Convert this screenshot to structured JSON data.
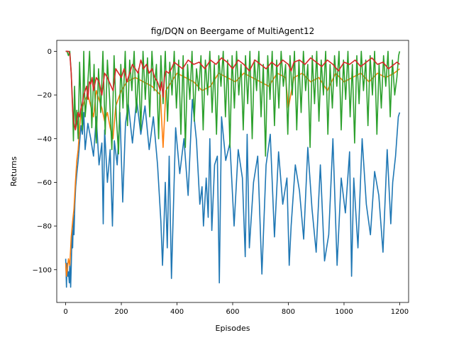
{
  "chart_data": {
    "type": "line",
    "title": "fig/DQN on Beergame of MultiAgent12",
    "xlabel": "Episodes",
    "ylabel": "Returns",
    "xlim": [
      -32,
      1232
    ],
    "ylim": [
      -115,
      5
    ],
    "xticks": [
      0,
      200,
      400,
      600,
      800,
      1000,
      1200
    ],
    "yticks": [
      0,
      -20,
      -40,
      -60,
      -80,
      -100
    ],
    "grid": false,
    "legend": "none",
    "series": [
      {
        "color": "#1f77b4",
        "x": [
          0,
          3,
          5,
          8,
          10,
          13,
          15,
          18,
          20,
          23,
          25,
          28,
          30,
          33,
          36,
          40,
          45,
          50,
          55,
          60,
          65,
          70,
          80,
          90,
          100,
          110,
          120,
          130,
          135,
          140,
          150,
          160,
          168,
          175,
          185,
          195,
          205,
          215,
          225,
          240,
          255,
          270,
          285,
          300,
          315,
          330,
          342,
          348,
          352,
          358,
          365,
          372,
          380,
          395,
          410,
          425,
          440,
          455,
          470,
          482,
          490,
          495,
          505,
          512,
          518,
          525,
          535,
          545,
          552,
          560,
          575,
          590,
          605,
          620,
          635,
          645,
          652,
          660,
          675,
          690,
          705,
          720,
          735,
          750,
          765,
          780,
          795,
          803,
          810,
          825,
          840,
          855,
          870,
          885,
          900,
          915,
          930,
          945,
          960,
          975,
          990,
          1005,
          1020,
          1027,
          1035,
          1050,
          1065,
          1080,
          1095,
          1110,
          1125,
          1140,
          1155,
          1168,
          1175,
          1185,
          1195,
          1200
        ],
        "y": [
          -95,
          -108,
          -97,
          -103,
          -101,
          -106,
          -96,
          -108,
          -99,
          -82,
          -90,
          -75,
          -84,
          -70,
          -62,
          -56,
          -50,
          -42,
          -34,
          -38,
          -28,
          -45,
          -33,
          -40,
          -48,
          -30,
          -52,
          -42,
          -79,
          -36,
          -60,
          -45,
          -80,
          -41,
          -52,
          -28,
          -69,
          -33,
          -24,
          -42,
          -22,
          -38,
          -25,
          -45,
          -30,
          -52,
          -78,
          -98,
          -84,
          -60,
          -90,
          -48,
          -104,
          -35,
          -56,
          -40,
          -66,
          -22,
          -41,
          -70,
          -62,
          -80,
          -58,
          -76,
          -40,
          -82,
          -52,
          -48,
          -106,
          -30,
          -50,
          -42,
          -80,
          -45,
          -58,
          -94,
          -38,
          -90,
          -60,
          -48,
          -102,
          -52,
          -38,
          -85,
          -46,
          -70,
          -58,
          -98,
          -80,
          -52,
          -64,
          -86,
          -44,
          -72,
          -92,
          -52,
          -96,
          -84,
          -40,
          -98,
          -58,
          -74,
          -46,
          -103,
          -58,
          -90,
          -40,
          -70,
          -84,
          -55,
          -66,
          -92,
          -45,
          -79,
          -60,
          -48,
          -30,
          -28
        ]
      },
      {
        "color": "#ff7f0e",
        "x": [
          0,
          3,
          6,
          10,
          15,
          20,
          25,
          30,
          35,
          40,
          45,
          50,
          55,
          60,
          70,
          80,
          90,
          100,
          110,
          120,
          130,
          140,
          150,
          160,
          170,
          180,
          200,
          220,
          250,
          280,
          310,
          340,
          350,
          360,
          380,
          400,
          430,
          460,
          490,
          520,
          550,
          580,
          610,
          640,
          670,
          700,
          730,
          760,
          790,
          800,
          820,
          850,
          880,
          910,
          940,
          970,
          1000,
          1030,
          1060,
          1090,
          1120,
          1150,
          1180,
          1200
        ],
        "y": [
          -97,
          -103,
          -100,
          -95,
          -98,
          -85,
          -78,
          -72,
          -60,
          -50,
          -45,
          -35,
          -28,
          -26,
          -22,
          -20,
          -25,
          -30,
          -18,
          -22,
          -26,
          -32,
          -28,
          -35,
          -40,
          -25,
          -18,
          -14,
          -12,
          -14,
          -16,
          -20,
          -44,
          -18,
          -14,
          -10,
          -12,
          -14,
          -18,
          -16,
          -10,
          -12,
          -14,
          -10,
          -12,
          -14,
          -16,
          -10,
          -12,
          -26,
          -12,
          -10,
          -14,
          -12,
          -18,
          -10,
          -14,
          -12,
          -10,
          -14,
          -10,
          -12,
          -10,
          -8
        ]
      },
      {
        "color": "#2ca02c",
        "x": [
          0,
          5,
          10,
          15,
          20,
          25,
          28,
          32,
          36,
          40,
          45,
          50,
          55,
          60,
          65,
          70,
          78,
          86,
          94,
          102,
          110,
          118,
          126,
          134,
          142,
          150,
          158,
          166,
          174,
          182,
          190,
          198,
          206,
          214,
          222,
          230,
          238,
          246,
          254,
          262,
          270,
          278,
          286,
          294,
          302,
          310,
          318,
          326,
          334,
          342,
          350,
          358,
          366,
          374,
          382,
          390,
          398,
          406,
          414,
          422,
          430,
          438,
          446,
          454,
          462,
          470,
          478,
          486,
          494,
          502,
          510,
          518,
          526,
          534,
          542,
          550,
          558,
          566,
          574,
          582,
          590,
          598,
          606,
          614,
          622,
          630,
          638,
          646,
          654,
          662,
          670,
          678,
          686,
          694,
          702,
          710,
          718,
          726,
          734,
          742,
          750,
          758,
          766,
          774,
          782,
          790,
          798,
          806,
          814,
          822,
          830,
          838,
          846,
          854,
          862,
          870,
          878,
          886,
          894,
          902,
          910,
          918,
          926,
          934,
          942,
          950,
          958,
          966,
          974,
          982,
          990,
          998,
          1006,
          1014,
          1022,
          1030,
          1038,
          1046,
          1054,
          1062,
          1070,
          1078,
          1086,
          1094,
          1102,
          1110,
          1118,
          1126,
          1134,
          1142,
          1150,
          1158,
          1166,
          1174,
          1182,
          1190,
          1196,
          1200
        ],
        "y": [
          0,
          0,
          -2,
          0,
          -10,
          -25,
          -41,
          -16,
          -35,
          -27,
          -40,
          -5,
          -24,
          -36,
          0,
          -30,
          -18,
          0,
          -35,
          -6,
          -42,
          -8,
          -28,
          0,
          -38,
          -4,
          -22,
          -45,
          -2,
          -30,
          -47,
          -6,
          -26,
          0,
          -34,
          -4,
          -18,
          0,
          -28,
          -8,
          -36,
          0,
          -22,
          -3,
          -30,
          0,
          -18,
          -6,
          -40,
          -2,
          -24,
          0,
          -32,
          -5,
          -20,
          0,
          -26,
          -4,
          -38,
          -2,
          -44,
          -6,
          -22,
          0,
          -32,
          -8,
          -18,
          -2,
          -36,
          -4,
          -20,
          0,
          -28,
          -6,
          -38,
          -2,
          -16,
          0,
          -30,
          -4,
          -44,
          -2,
          -26,
          0,
          -20,
          -6,
          -36,
          -2,
          -24,
          0,
          -40,
          -4,
          -18,
          0,
          -30,
          -6,
          -48,
          -2,
          -22,
          0,
          -34,
          -4,
          -26,
          0,
          -16,
          -6,
          -38,
          -2,
          -20,
          0,
          -36,
          -4,
          -28,
          0,
          -18,
          -6,
          -44,
          -2,
          -24,
          0,
          -32,
          -4,
          -20,
          0,
          -38,
          -6,
          -26,
          -2,
          -16,
          0,
          -36,
          -4,
          -22,
          0,
          -30,
          -6,
          -42,
          -2,
          -24,
          0,
          -18,
          -4,
          -34,
          -2,
          -20,
          0,
          -38,
          -6,
          -26,
          -2,
          -16,
          0,
          -30,
          -4,
          -20,
          -12,
          -2,
          0
        ]
      },
      {
        "color": "#d62728",
        "x": [
          0,
          5,
          10,
          15,
          20,
          25,
          30,
          35,
          40,
          45,
          50,
          55,
          60,
          65,
          70,
          75,
          80,
          85,
          90,
          95,
          100,
          110,
          120,
          130,
          140,
          150,
          160,
          170,
          180,
          190,
          200,
          210,
          220,
          230,
          240,
          250,
          260,
          270,
          280,
          290,
          300,
          310,
          320,
          330,
          340,
          345,
          350,
          355,
          360,
          370,
          380,
          390,
          400,
          420,
          440,
          460,
          480,
          500,
          520,
          540,
          560,
          580,
          600,
          620,
          640,
          660,
          680,
          700,
          720,
          740,
          760,
          780,
          800,
          810,
          820,
          840,
          860,
          880,
          900,
          920,
          940,
          960,
          980,
          1000,
          1020,
          1040,
          1060,
          1080,
          1100,
          1120,
          1140,
          1160,
          1180,
          1190,
          1200
        ],
        "y": [
          0,
          0,
          0,
          -1,
          -10,
          -27,
          -33,
          -36,
          -32,
          -28,
          -30,
          -26,
          -24,
          -20,
          -18,
          -16,
          -22,
          -14,
          -15,
          -12,
          -18,
          -12,
          -14,
          -20,
          -10,
          -12,
          -15,
          -18,
          -8,
          -10,
          -12,
          -8,
          -14,
          -10,
          -6,
          -8,
          -10,
          -4,
          -8,
          -6,
          -10,
          -8,
          -12,
          -14,
          -18,
          -14,
          -21,
          -12,
          -9,
          -10,
          -8,
          -5,
          -6,
          -8,
          -4,
          -6,
          -5,
          -8,
          -4,
          -6,
          -3,
          -5,
          -8,
          -4,
          -6,
          -9,
          -4,
          -6,
          -8,
          -5,
          -7,
          -4,
          -6,
          -9,
          -5,
          -4,
          -6,
          -3,
          -5,
          -7,
          -4,
          -6,
          -9,
          -5,
          -6,
          -4,
          -7,
          -5,
          -3,
          -6,
          -5,
          -8,
          -6,
          -5,
          -6
        ]
      }
    ]
  }
}
